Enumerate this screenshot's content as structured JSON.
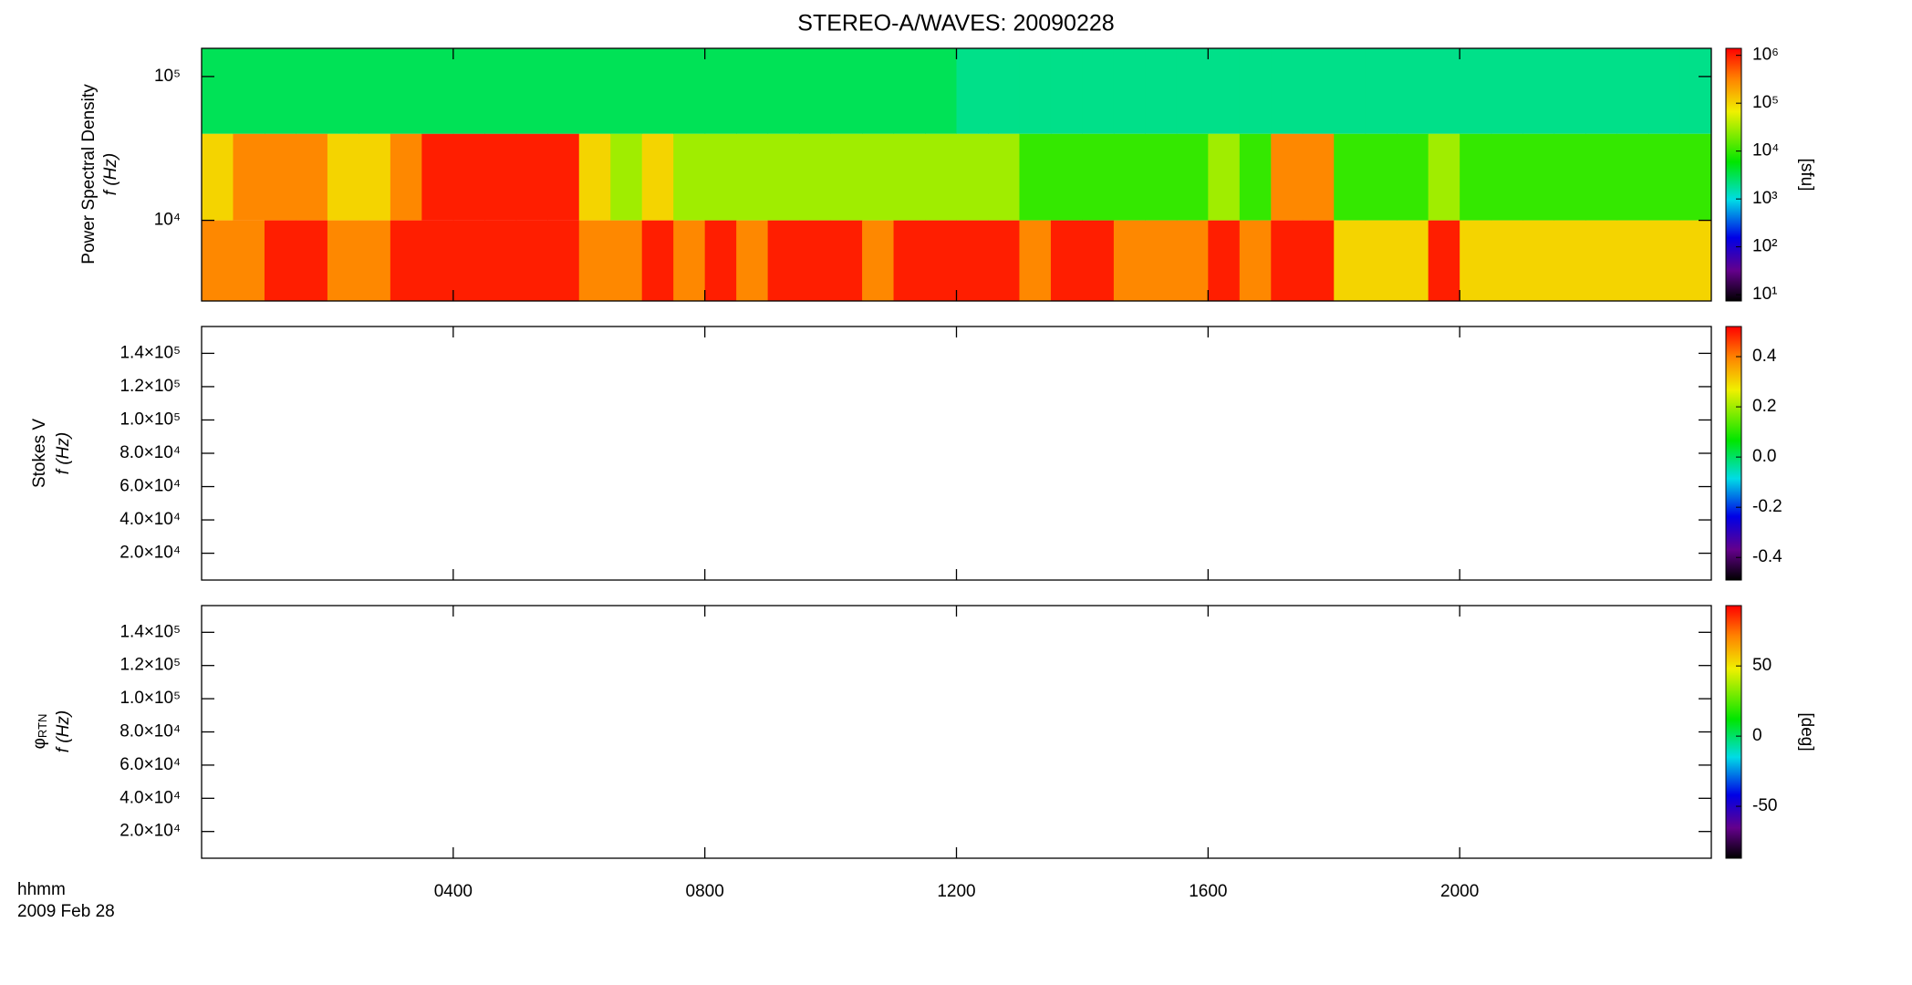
{
  "chart_data": [
    {
      "type": "heatmap",
      "title": "STEREO-A/WAVES: 20090228",
      "ylabel": [
        "Power Spectral Density",
        "f (Hz)"
      ],
      "xlim": [
        0,
        24
      ],
      "xticks": [
        4,
        8,
        12,
        16,
        20
      ],
      "ylim": [
        2750,
        157000
      ],
      "ylog": true,
      "yticks": [
        {
          "value": 10000,
          "label": "10⁴"
        },
        {
          "value": 100000,
          "label": "10⁵"
        }
      ],
      "x_edges": [
        0,
        0.5,
        1,
        1.5,
        2,
        2.5,
        3,
        3.5,
        4,
        4.5,
        5,
        5.5,
        6,
        6.5,
        7,
        7.5,
        8,
        8.5,
        9,
        9.5,
        10,
        10.5,
        11,
        11.5,
        12,
        12.5,
        13,
        13.5,
        14,
        14.5,
        15,
        15.5,
        16,
        16.5,
        17,
        17.5,
        18,
        18.5,
        19,
        19.5,
        20,
        20.5,
        21,
        21.5,
        22,
        22.5,
        23,
        23.5,
        24
      ],
      "y_edges": [
        2750,
        10000,
        40000,
        157000
      ],
      "z": [
        [
          300000,
          300000,
          1000000,
          1000000,
          300000,
          300000,
          1000000,
          1000000,
          1000000,
          1000000,
          1000000,
          1000000,
          300000,
          300000,
          1000000,
          300000,
          1000000,
          300000,
          1000000,
          1000000,
          1000000,
          300000,
          1000000,
          1000000,
          1000000,
          1000000,
          300000,
          1000000,
          1000000,
          300000,
          300000,
          300000,
          1000000,
          300000,
          1000000,
          1000000,
          100000,
          100000,
          100000,
          1000000,
          100000,
          100000,
          100000,
          100000,
          100000,
          100000,
          100000,
          100000
        ],
        [
          100000,
          300000,
          300000,
          300000,
          100000,
          100000,
          300000,
          1000000,
          1000000,
          1000000,
          1000000,
          1000000,
          100000,
          30000,
          100000,
          30000,
          30000,
          30000,
          30000,
          30000,
          30000,
          30000,
          30000,
          30000,
          30000,
          30000,
          10000,
          10000,
          10000,
          10000,
          10000,
          10000,
          30000,
          10000,
          300000,
          300000,
          10000,
          10000,
          10000,
          30000,
          10000,
          10000,
          10000,
          10000,
          10000,
          10000,
          10000,
          10000
        ],
        [
          3000,
          3000,
          3000,
          3000,
          3000,
          3000,
          3000,
          3000,
          3000,
          3000,
          3000,
          3000,
          3000,
          3000,
          3000,
          3000,
          3000,
          3000,
          3000,
          3000,
          3000,
          3000,
          3000,
          3000,
          2000,
          2000,
          2000,
          2000,
          2000,
          2000,
          2000,
          2000,
          2000,
          2000,
          2000,
          2000,
          2000,
          2000,
          2000,
          2000,
          2000,
          2000,
          2000,
          2000,
          2000,
          2000,
          2000,
          2000
        ]
      ],
      "colorbar": {
        "lim": [
          7.4,
          1400000
        ],
        "log": true,
        "label": "[sfu]",
        "ticks": [
          {
            "value": 10,
            "label": "10¹"
          },
          {
            "value": 100,
            "label": "10²"
          },
          {
            "value": 1000,
            "label": "10³"
          },
          {
            "value": 10000,
            "label": "10⁴"
          },
          {
            "value": 100000,
            "label": "10⁵"
          },
          {
            "value": 1000000,
            "label": "10⁶"
          }
        ]
      }
    },
    {
      "type": "heatmap",
      "ylabel": [
        "Stokes V",
        "f (Hz)"
      ],
      "xlim": [
        0,
        24
      ],
      "xticks": [
        4,
        8,
        12,
        16,
        20
      ],
      "ylim": [
        3900,
        156100
      ],
      "yticks": [
        {
          "value": 20000,
          "label": "2.0×10⁴"
        },
        {
          "value": 40000,
          "label": "4.0×10⁴"
        },
        {
          "value": 60000,
          "label": "6.0×10⁴"
        },
        {
          "value": 80000,
          "label": "8.0×10⁴"
        },
        {
          "value": 100000,
          "label": "1.0×10⁵"
        },
        {
          "value": 120000,
          "label": "1.2×10⁵"
        },
        {
          "value": 140000,
          "label": "1.4×10⁵"
        }
      ],
      "colorbar": {
        "lim": [
          -0.49,
          0.52
        ],
        "ticks": [
          -0.4,
          -0.2,
          {
            "value": 0,
            "label": "0.0"
          },
          0.2,
          0.4
        ]
      }
    },
    {
      "type": "heatmap",
      "ylabel": [
        "φ",
        "RTN",
        "f (Hz)"
      ],
      "xlabel": [
        "hhmm",
        "2009 Feb 28"
      ],
      "xlim": [
        0,
        24
      ],
      "xticks": [
        {
          "value": 4,
          "label": "0400"
        },
        {
          "value": 8,
          "label": "0800"
        },
        {
          "value": 12,
          "label": "1200"
        },
        {
          "value": 16,
          "label": "1600"
        },
        {
          "value": 20,
          "label": "2000"
        }
      ],
      "ylim": [
        3900,
        156100
      ],
      "yticks": [
        {
          "value": 20000,
          "label": "2.0×10⁴"
        },
        {
          "value": 40000,
          "label": "4.0×10⁴"
        },
        {
          "value": 60000,
          "label": "6.0×10⁴"
        },
        {
          "value": 80000,
          "label": "8.0×10⁴"
        },
        {
          "value": 100000,
          "label": "1.0×10⁵"
        },
        {
          "value": 120000,
          "label": "1.2×10⁵"
        },
        {
          "value": 140000,
          "label": "1.4×10⁵"
        }
      ],
      "colorbar": {
        "lim": [
          -87,
          93
        ],
        "label": "[deg]",
        "ticks": [
          -50,
          0,
          50
        ]
      }
    }
  ]
}
